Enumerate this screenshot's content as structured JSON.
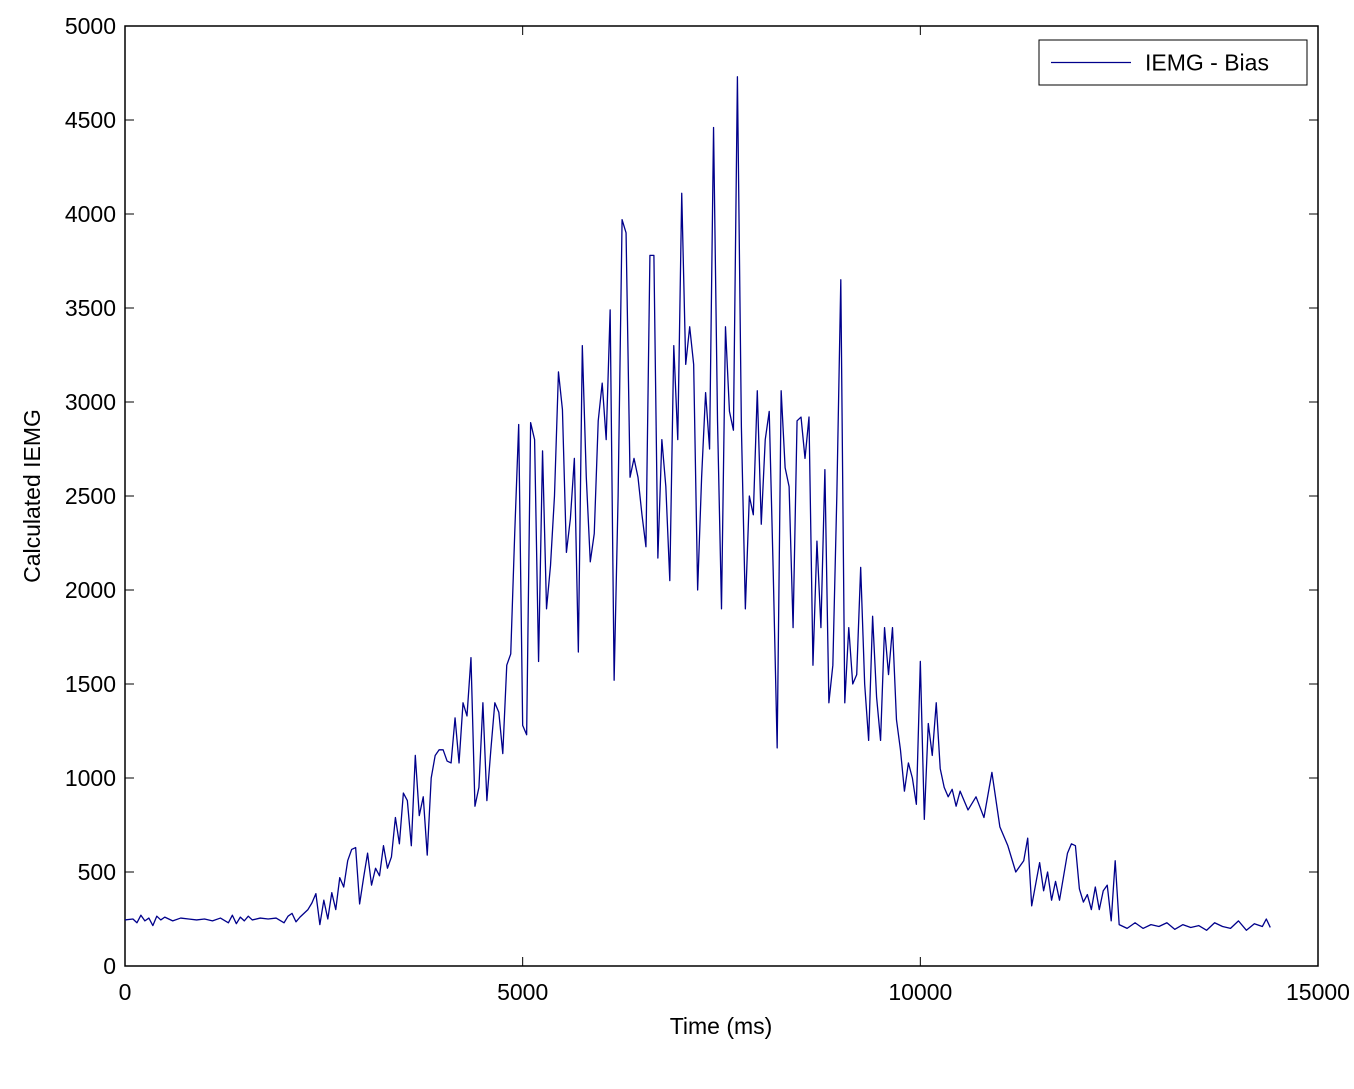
{
  "chart_data": {
    "type": "line",
    "xlabel": "Time (ms)",
    "ylabel": "Calculated IEMG",
    "xlim": [
      0,
      15000
    ],
    "xticks": [
      0,
      5000,
      10000,
      15000
    ],
    "ylim": [
      0,
      5000
    ],
    "yticks": [
      0,
      500,
      1000,
      1500,
      2000,
      2500,
      3000,
      3500,
      4000,
      4500,
      5000
    ],
    "grid": false,
    "legend": "northeast",
    "x": [
      0,
      100,
      150,
      200,
      250,
      300,
      350,
      400,
      450,
      500,
      600,
      700,
      800,
      900,
      1000,
      1100,
      1200,
      1300,
      1350,
      1400,
      1450,
      1500,
      1550,
      1600,
      1700,
      1800,
      1900,
      2000,
      2050,
      2100,
      2150,
      2200,
      2250,
      2300,
      2350,
      2400,
      2450,
      2500,
      2550,
      2600,
      2650,
      2700,
      2750,
      2800,
      2850,
      2900,
      2950,
      3000,
      3050,
      3100,
      3150,
      3200,
      3250,
      3300,
      3350,
      3400,
      3450,
      3500,
      3550,
      3600,
      3650,
      3700,
      3750,
      3800,
      3850,
      3900,
      3950,
      4000,
      4050,
      4100,
      4150,
      4200,
      4250,
      4300,
      4350,
      4400,
      4450,
      4500,
      4550,
      4600,
      4650,
      4700,
      4750,
      4800,
      4850,
      4900,
      4950,
      5000,
      5050,
      5100,
      5150,
      5200,
      5250,
      5300,
      5350,
      5400,
      5450,
      5500,
      5550,
      5600,
      5650,
      5700,
      5750,
      5800,
      5850,
      5900,
      5950,
      6000,
      6050,
      6100,
      6150,
      6200,
      6250,
      6300,
      6350,
      6400,
      6450,
      6500,
      6550,
      6600,
      6650,
      6700,
      6750,
      6800,
      6850,
      6900,
      6950,
      7000,
      7050,
      7100,
      7150,
      7200,
      7250,
      7300,
      7350,
      7400,
      7450,
      7500,
      7550,
      7600,
      7650,
      7700,
      7750,
      7800,
      7850,
      7900,
      7950,
      8000,
      8050,
      8100,
      8150,
      8200,
      8250,
      8300,
      8350,
      8400,
      8450,
      8500,
      8550,
      8600,
      8650,
      8700,
      8750,
      8800,
      8850,
      8900,
      8950,
      9000,
      9050,
      9100,
      9150,
      9200,
      9250,
      9300,
      9350,
      9400,
      9450,
      9500,
      9550,
      9600,
      9650,
      9700,
      9750,
      9800,
      9850,
      9900,
      9950,
      10000,
      10050,
      10100,
      10150,
      10200,
      10250,
      10300,
      10350,
      10400,
      10450,
      10500,
      10600,
      10700,
      10800,
      10900,
      11000,
      11100,
      11200,
      11300,
      11350,
      11400,
      11500,
      11550,
      11600,
      11650,
      11700,
      11750,
      11850,
      11900,
      11950,
      12000,
      12050,
      12100,
      12150,
      12200,
      12250,
      12300,
      12350,
      12400,
      12450,
      12500,
      12600,
      12700,
      12800,
      12900,
      13000,
      13100,
      13200,
      13300,
      13400,
      13500,
      13600,
      13700,
      13800,
      13900,
      14000,
      14100,
      14200,
      14300,
      14350,
      14400
    ],
    "series": [
      {
        "name": "IEMG - Bias",
        "color": "#00008b",
        "values": [
          245,
          250,
          230,
          270,
          240,
          255,
          215,
          265,
          245,
          260,
          240,
          255,
          250,
          245,
          250,
          240,
          255,
          230,
          270,
          225,
          260,
          240,
          265,
          245,
          255,
          250,
          255,
          230,
          265,
          280,
          235,
          260,
          280,
          300,
          335,
          385,
          220,
          350,
          250,
          390,
          300,
          470,
          420,
          560,
          620,
          630,
          330,
          470,
          600,
          430,
          520,
          480,
          640,
          520,
          580,
          790,
          650,
          920,
          880,
          640,
          1120,
          800,
          900,
          590,
          1000,
          1120,
          1150,
          1150,
          1090,
          1080,
          1320,
          1080,
          1400,
          1330,
          1640,
          850,
          950,
          1400,
          880,
          1150,
          1400,
          1350,
          1130,
          1600,
          1660,
          2300,
          2880,
          1280,
          1230,
          2890,
          2800,
          1620,
          2740,
          1900,
          2130,
          2500,
          3160,
          2960,
          2200,
          2380,
          2700,
          1670,
          3300,
          2600,
          2150,
          2300,
          2900,
          3100,
          2800,
          3490,
          1520,
          2500,
          3970,
          3900,
          2600,
          2700,
          2600,
          2400,
          2230,
          3780,
          3780,
          2170,
          2800,
          2550,
          2050,
          3300,
          2800,
          4110,
          3200,
          3400,
          3200,
          2000,
          2600,
          3050,
          2750,
          4460,
          2900,
          1900,
          3400,
          2950,
          2850,
          4730,
          2870,
          1900,
          2500,
          2400,
          3060,
          2350,
          2800,
          2950,
          2100,
          1160,
          3060,
          2650,
          2550,
          1800,
          2900,
          2920,
          2700,
          2920,
          1600,
          2260,
          1800,
          2640,
          1400,
          1600,
          2500,
          3650,
          1400,
          1800,
          1500,
          1550,
          2120,
          1500,
          1200,
          1860,
          1430,
          1200,
          1800,
          1550,
          1800,
          1310,
          1150,
          930,
          1080,
          1000,
          860,
          1620,
          780,
          1290,
          1120,
          1400,
          1050,
          950,
          900,
          940,
          850,
          930,
          830,
          900,
          790,
          1030,
          740,
          640,
          500,
          560,
          680,
          320,
          550,
          400,
          500,
          350,
          450,
          350,
          600,
          650,
          640,
          410,
          340,
          380,
          300,
          420,
          300,
          400,
          430,
          240,
          560,
          220,
          200,
          230,
          200,
          220,
          210,
          230,
          195,
          220,
          205,
          215,
          190,
          230,
          210,
          200,
          240,
          190,
          225,
          210,
          250,
          205
        ]
      }
    ]
  }
}
